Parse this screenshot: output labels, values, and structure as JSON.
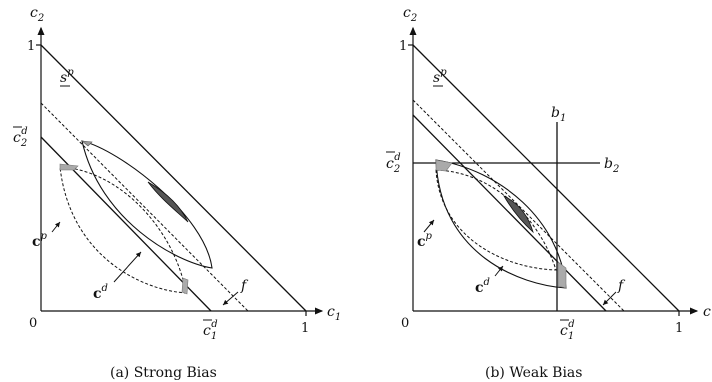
{
  "panels": [
    {
      "caption": "(a) Strong Bias",
      "axis_x": "c1",
      "axis_y": "c2",
      "origin": "0",
      "x_one": "1",
      "y_one": "1",
      "label_sp": "s",
      "label_sp_sup": "p",
      "label_c2d": "c",
      "label_c2d_sub": "2",
      "label_c2d_sup": "d",
      "label_c1d": "c",
      "label_c1d_sub": "1",
      "label_c1d_sup": "d",
      "label_cp": "c",
      "label_cp_sup": "p",
      "label_cd": "c",
      "label_cd_sup": "d",
      "label_f": "f"
    },
    {
      "caption": "(b) Weak Bias",
      "axis_x": "c",
      "axis_y": "c2",
      "origin": "0",
      "x_one": "1",
      "y_one": "1",
      "label_sp": "s",
      "label_sp_sup": "p",
      "label_c2d": "c",
      "label_c2d_sub": "2",
      "label_c2d_sup": "d",
      "label_c1d": "c",
      "label_c1d_sub": "1",
      "label_c1d_sup": "d",
      "label_cp": "c",
      "label_cp_sup": "p",
      "label_cd": "c",
      "label_cd_sup": "d",
      "label_f": "f",
      "label_b1": "b",
      "label_b1_sub": "1",
      "label_b2": "b",
      "label_b2_sub": "2"
    }
  ]
}
